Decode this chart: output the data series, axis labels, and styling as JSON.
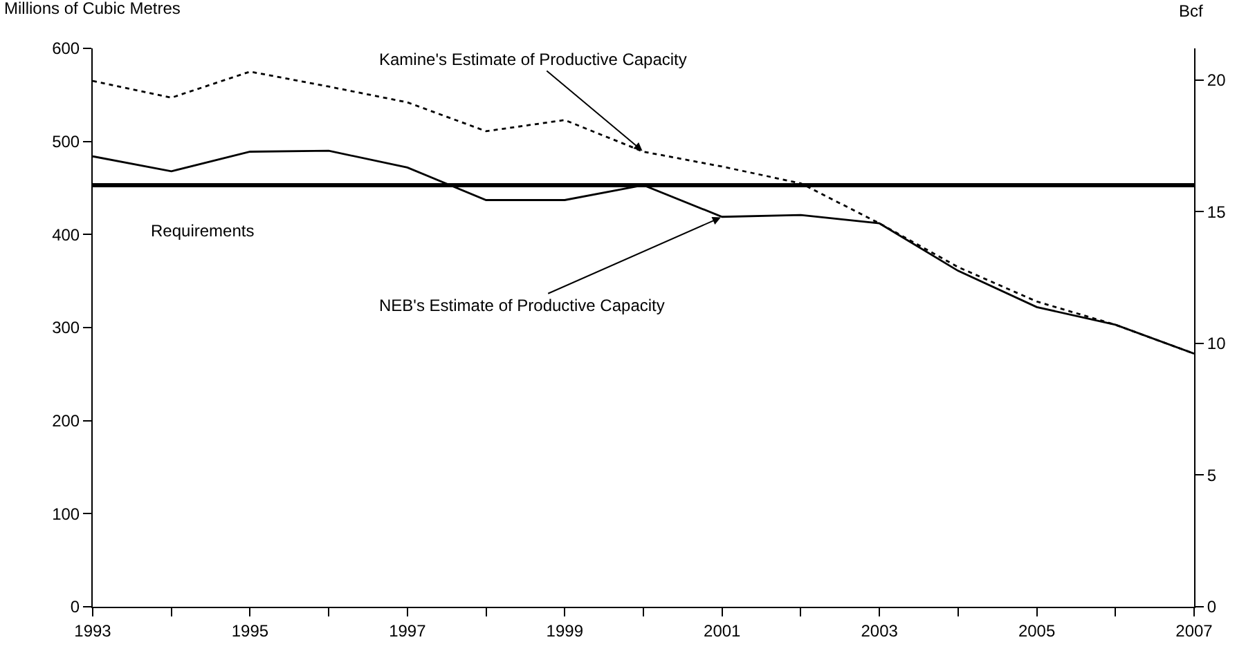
{
  "chart_data": {
    "type": "line",
    "ylabel": "Millions of Cubic Metres",
    "y2label": "Bcf",
    "x": [
      1993,
      1994,
      1995,
      1996,
      1997,
      1998,
      1999,
      2000,
      2001,
      2002,
      2003,
      2004,
      2005,
      2006,
      2007
    ],
    "series": [
      {
        "color": "#000000",
        "line_style": "solid",
        "values": [
          484,
          468,
          489,
          490,
          472,
          437,
          437,
          453,
          419,
          421,
          412,
          361,
          322,
          303,
          272
        ]
      },
      {
        "color": "#000000",
        "line_style": "dotted",
        "values": [
          565,
          547,
          575,
          559,
          542,
          511,
          523,
          489,
          473,
          455,
          412,
          365,
          328,
          303,
          272
        ]
      }
    ],
    "ref_lines": [
      {
        "axis": "y",
        "value": 453,
        "label": "Requirements",
        "color": "#000000"
      }
    ],
    "annotations": [
      {
        "text": "Kamine's Estimate of Productive Capacity",
        "x": 2000,
        "y": 489
      },
      {
        "text": "NEB's Estimate of Productive Capacity",
        "x": 2001,
        "y": 419
      }
    ],
    "xlim": [
      1993,
      2007
    ],
    "xticks": [
      1993,
      {
        "value": 1994,
        "label": null
      },
      1995,
      {
        "value": 1996,
        "label": null
      },
      1997,
      {
        "value": 1998,
        "label": null
      },
      1999,
      {
        "value": 2000,
        "label": null
      },
      2001,
      {
        "value": 2002,
        "label": null
      },
      2003,
      {
        "value": 2004,
        "label": null
      },
      2005,
      {
        "value": 2006,
        "label": null
      },
      2007
    ],
    "ylim": [
      0,
      600
    ],
    "yticks": [
      0,
      100,
      200,
      300,
      400,
      500,
      600
    ],
    "y2lim": [
      0,
      21.2
    ],
    "y2ticks": [
      0,
      5,
      10,
      15,
      20
    ],
    "marker": "none"
  }
}
